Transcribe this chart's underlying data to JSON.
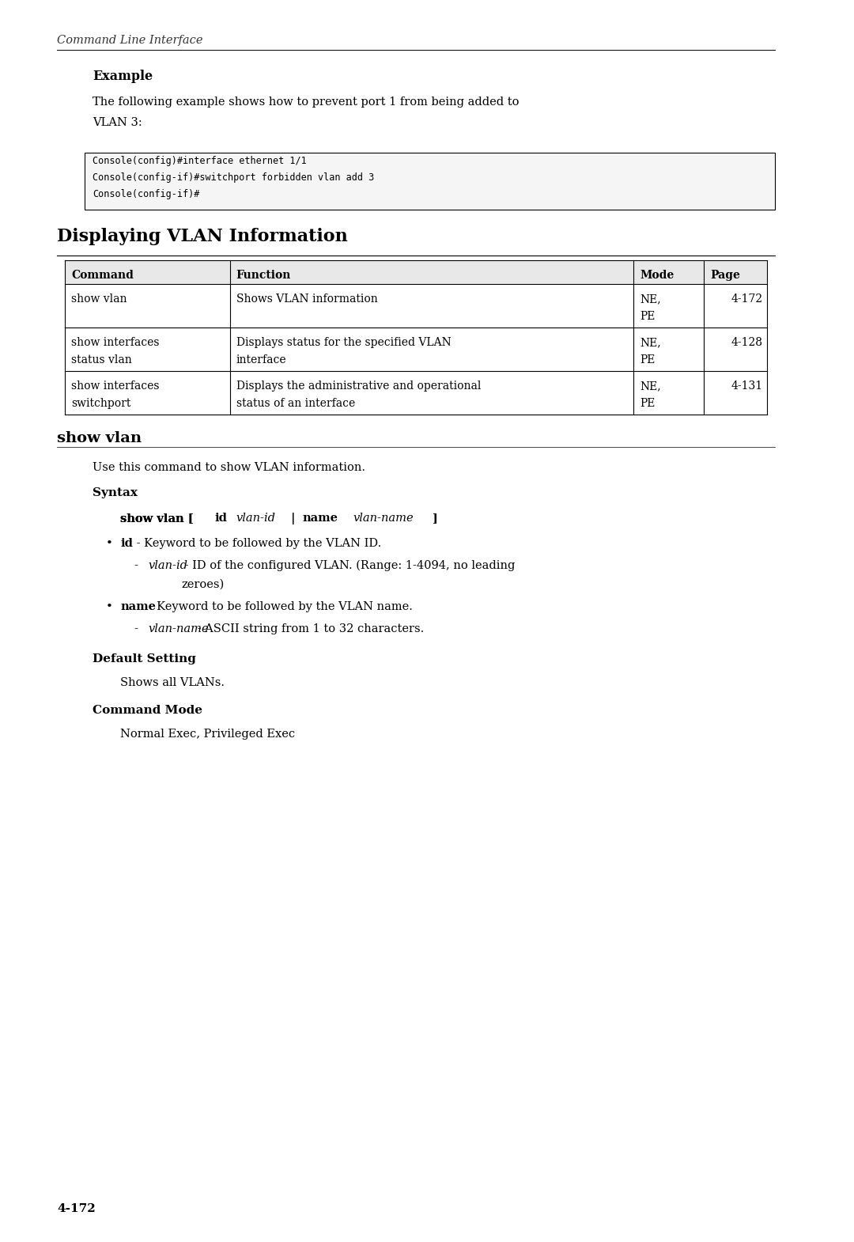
{
  "bg_color": "#ffffff",
  "page_width": 10.8,
  "page_height": 15.7,
  "header_text": "Command Line Interface",
  "example_heading": "Example",
  "example_body": "The following example shows how to prevent port 1 from being added to\nVLAN 3:",
  "code_lines": [
    "Console(config)#interface ethernet 1/1",
    "Console(config-if)#switchport forbidden vlan add 3",
    "Console(config-if)#"
  ],
  "section_title": "Displaying VLAN Information",
  "table_headers": [
    "Command",
    "Function",
    "Mode",
    "Page"
  ],
  "table_rows": [
    [
      "show vlan",
      "Shows VLAN information",
      "NE,\nPE",
      "4-172"
    ],
    [
      "show interfaces\nstatus vlan",
      "Displays status for the specified VLAN\ninterface",
      "NE,\nPE",
      "4-128"
    ],
    [
      "show interfaces\nswitchport",
      "Displays the administrative and operational\nstatus of an interface",
      "NE,\nPE",
      "4-131"
    ]
  ],
  "subsection_title": "show vlan",
  "description": "Use this command to show VLAN information.",
  "syntax_heading": "Syntax",
  "syntax_command": "show vlan [id vlan-id | name vlan-name]",
  "bullet1_bold": "id",
  "bullet1_text": " - Keyword to be followed by the VLAN ID.",
  "sub_bullet1_italic": "vlan-id",
  "sub_bullet1_text": " - ID of the configured VLAN. (Range: 1-4094, no leading\n        zeroes)",
  "bullet2_bold": "name",
  "bullet2_text": " - Keyword to be followed by the VLAN name.",
  "sub_bullet2_italic": "vlan-name",
  "sub_bullet2_text": " - ASCII string from 1 to 32 characters.",
  "default_heading": "Default Setting",
  "default_text": "Shows all VLANs.",
  "cmdmode_heading": "Command Mode",
  "cmdmode_text": "Normal Exec, Privileged Exec",
  "page_number": "4-172"
}
